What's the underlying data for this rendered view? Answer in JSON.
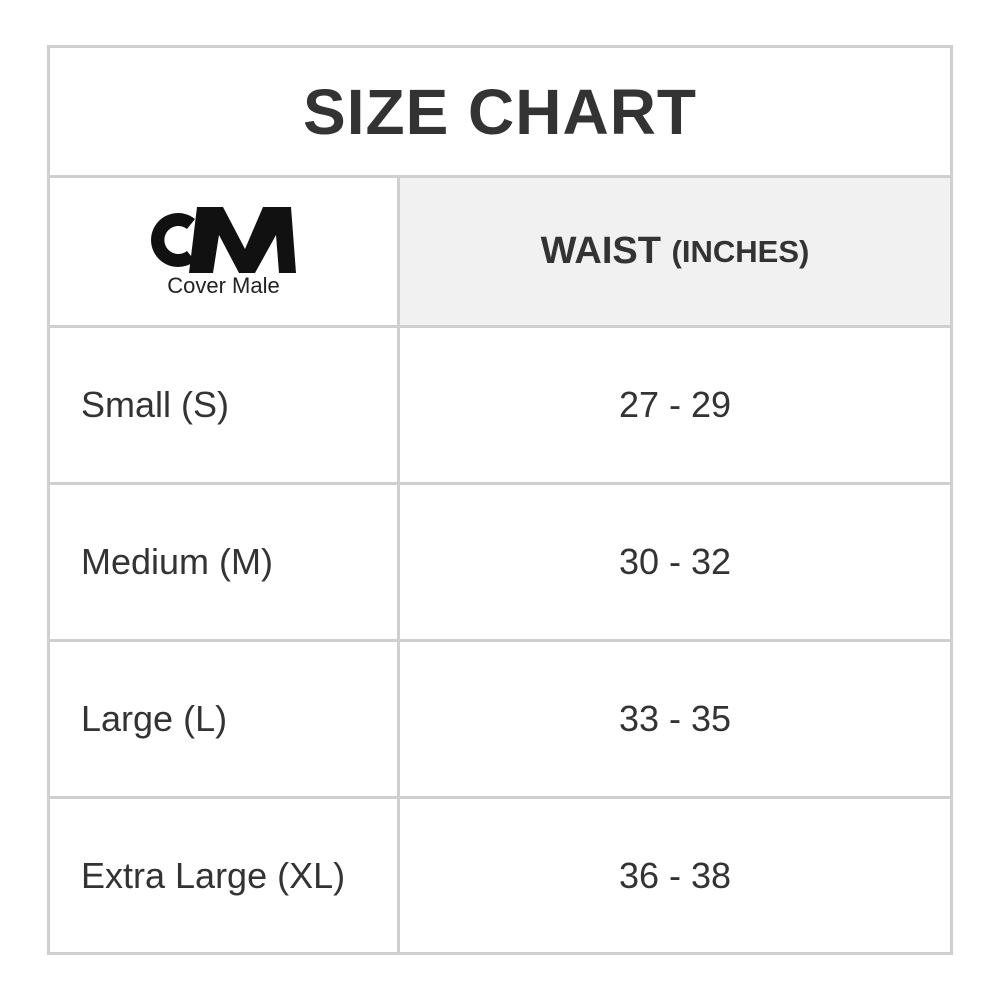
{
  "title": "SIZE CHART",
  "logo": {
    "brand_letters": "CM",
    "brand_name": "Cover Male"
  },
  "header": {
    "measure": "WAIST",
    "unit": "(INCHES)"
  },
  "rows": [
    {
      "size": "Small (S)",
      "waist": "27 - 29"
    },
    {
      "size": "Medium (M)",
      "waist": "30 - 32"
    },
    {
      "size": "Large (L)",
      "waist": "33 - 35"
    },
    {
      "size": "Extra Large (XL)",
      "waist": "36 - 38"
    }
  ]
}
